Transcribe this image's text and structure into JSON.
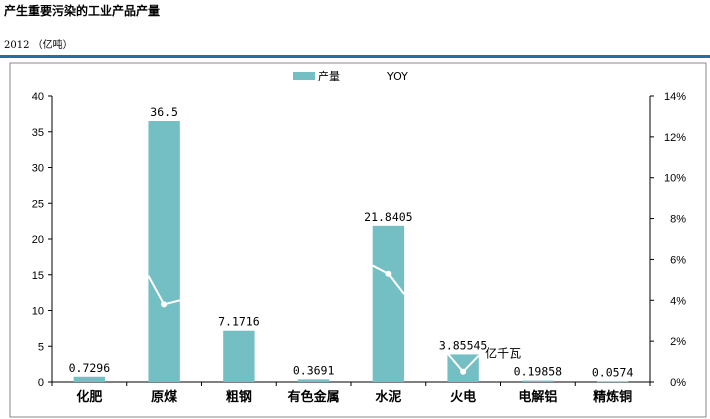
{
  "header": {
    "title": "产生重要污染的工业产品产量",
    "subtitle": "2012 （亿吨）"
  },
  "chart_data": {
    "type": "bar",
    "categories": [
      "化肥",
      "原煤",
      "粗钢",
      "有色金属",
      "水泥",
      "火电",
      "电解铝",
      "精炼铜"
    ],
    "series": [
      {
        "name": "产量",
        "values": [
          0.7296,
          36.5,
          7.1716,
          0.3691,
          21.8405,
          3.85545,
          0.19858,
          0.0574
        ],
        "color": "#74bfc4"
      },
      {
        "name": "YOY",
        "type": "line",
        "axis": "right",
        "color": "#ffffff",
        "segments": [
          {
            "category": "原煤",
            "y": [
              5.2,
              3.8,
              4.0
            ]
          },
          {
            "category": "水泥",
            "y": [
              5.7,
              5.3,
              4.3
            ]
          },
          {
            "category": "火电",
            "y": [
              1.4,
              0.5,
              1.3
            ]
          }
        ]
      }
    ],
    "data_labels": [
      "0.7296",
      "36.5",
      "7.1716",
      "0.3691",
      "21.8405",
      "3.85545",
      "0.19858",
      "0.0574"
    ],
    "annotation": "亿千瓦",
    "ylim": [
      0,
      40
    ],
    "yticks": [
      "0",
      "5",
      "10",
      "15",
      "20",
      "25",
      "30",
      "35",
      "40"
    ],
    "y2lim": [
      0,
      14
    ],
    "y2ticks": [
      "0%",
      "2%",
      "4%",
      "6%",
      "8%",
      "10%",
      "12%",
      "14%"
    ],
    "legend": "top-center",
    "grid": false
  }
}
